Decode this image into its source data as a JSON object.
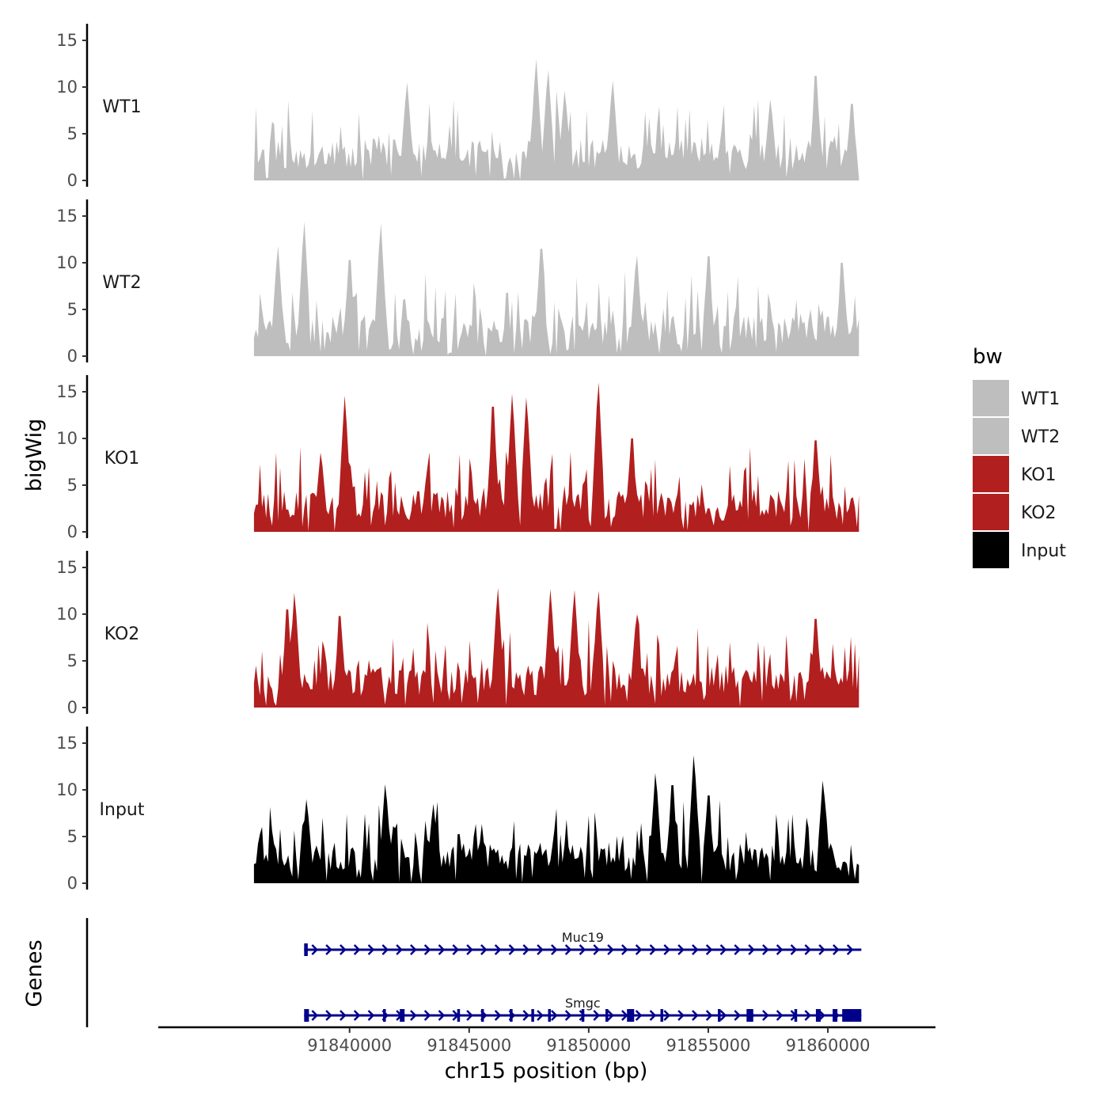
{
  "chart_data": {
    "type": "area",
    "ylabel": "bigWig",
    "xlabel": "chr15 position (bp)",
    "genes_label": "Genes",
    "legend_title": "bw",
    "xlim": [
      91832000,
      91864500
    ],
    "x_ticks": [
      91840000,
      91845000,
      91850000,
      91855000,
      91860000
    ],
    "ylim": [
      0,
      16
    ],
    "y_ticks": [
      0,
      5,
      10,
      15
    ],
    "colors": {
      "WT": "#bebebe",
      "KO": "#b21f1f",
      "Input": "#000000",
      "gene": "#00008b"
    },
    "tracks": [
      {
        "name": "WT1",
        "color": "#bebebe",
        "start": 91836000,
        "end": 91861300,
        "seed": 11,
        "peaks": [
          [
            91842400,
            10.5
          ],
          [
            91847800,
            13.0
          ],
          [
            91848300,
            11.8
          ],
          [
            91849000,
            9.6
          ],
          [
            91851000,
            10.7
          ],
          [
            91857600,
            8.7
          ],
          [
            91859500,
            11.2
          ],
          [
            91861000,
            8.2
          ]
        ]
      },
      {
        "name": "WT2",
        "color": "#bebebe",
        "start": 91836000,
        "end": 91861300,
        "seed": 23,
        "peaks": [
          [
            91837000,
            11.8
          ],
          [
            91838100,
            14.4
          ],
          [
            91840000,
            10.3
          ],
          [
            91841300,
            14.2
          ],
          [
            91848000,
            11.5
          ],
          [
            91852000,
            10.8
          ],
          [
            91855000,
            10.7
          ],
          [
            91860600,
            10.0
          ]
        ]
      },
      {
        "name": "KO1",
        "color": "#b21f1f",
        "start": 91836000,
        "end": 91861300,
        "seed": 37,
        "peaks": [
          [
            91838800,
            8.5
          ],
          [
            91839800,
            14.6
          ],
          [
            91846000,
            13.4
          ],
          [
            91846800,
            14.8
          ],
          [
            91847400,
            14.4
          ],
          [
            91850400,
            16.0
          ],
          [
            91851800,
            10.0
          ],
          [
            91859500,
            9.8
          ]
        ]
      },
      {
        "name": "KO2",
        "color": "#b21f1f",
        "start": 91836000,
        "end": 91861300,
        "seed": 53,
        "peaks": [
          [
            91837400,
            10.5
          ],
          [
            91837700,
            12.3
          ],
          [
            91839600,
            9.8
          ],
          [
            91846200,
            12.8
          ],
          [
            91848400,
            12.7
          ],
          [
            91849400,
            12.6
          ],
          [
            91850400,
            12.5
          ],
          [
            91852000,
            10.0
          ],
          [
            91859500,
            9.5
          ]
        ]
      },
      {
        "name": "Input",
        "color": "#000000",
        "start": 91836000,
        "end": 91861300,
        "seed": 71,
        "peaks": [
          [
            91838200,
            9.0
          ],
          [
            91841500,
            10.6
          ],
          [
            91843500,
            8.5
          ],
          [
            91852800,
            11.8
          ],
          [
            91853500,
            10.5
          ],
          [
            91854400,
            13.7
          ],
          [
            91855000,
            9.4
          ],
          [
            91859800,
            11.0
          ]
        ]
      }
    ],
    "legend": [
      {
        "label": "WT1",
        "color": "#bebebe"
      },
      {
        "label": "WT2",
        "color": "#bebebe"
      },
      {
        "label": "KO1",
        "color": "#b21f1f"
      },
      {
        "label": "KO2",
        "color": "#b21f1f"
      },
      {
        "label": "Input",
        "color": "#000000"
      }
    ],
    "genes": [
      {
        "name": "Muc19",
        "start": 91838100,
        "end": 91861400,
        "strand": "+",
        "exons": [
          [
            91838100,
            91838250
          ]
        ]
      },
      {
        "name": "Smgc",
        "start": 91838100,
        "end": 91861400,
        "strand": "+",
        "exons": [
          [
            91838100,
            91838300
          ],
          [
            91841400,
            91841500
          ],
          [
            91842100,
            91842300
          ],
          [
            91844500,
            91844600
          ],
          [
            91845500,
            91845550
          ],
          [
            91846700,
            91846780
          ],
          [
            91847600,
            91847700
          ],
          [
            91848300,
            91848380
          ],
          [
            91849700,
            91849800
          ],
          [
            91850700,
            91850800
          ],
          [
            91851600,
            91851900
          ],
          [
            91853000,
            91853060
          ],
          [
            91855400,
            91855460
          ],
          [
            91856600,
            91856880
          ],
          [
            91858600,
            91858680
          ],
          [
            91859500,
            91859700
          ],
          [
            91860200,
            91860400
          ],
          [
            91860600,
            91861400
          ]
        ]
      }
    ]
  }
}
